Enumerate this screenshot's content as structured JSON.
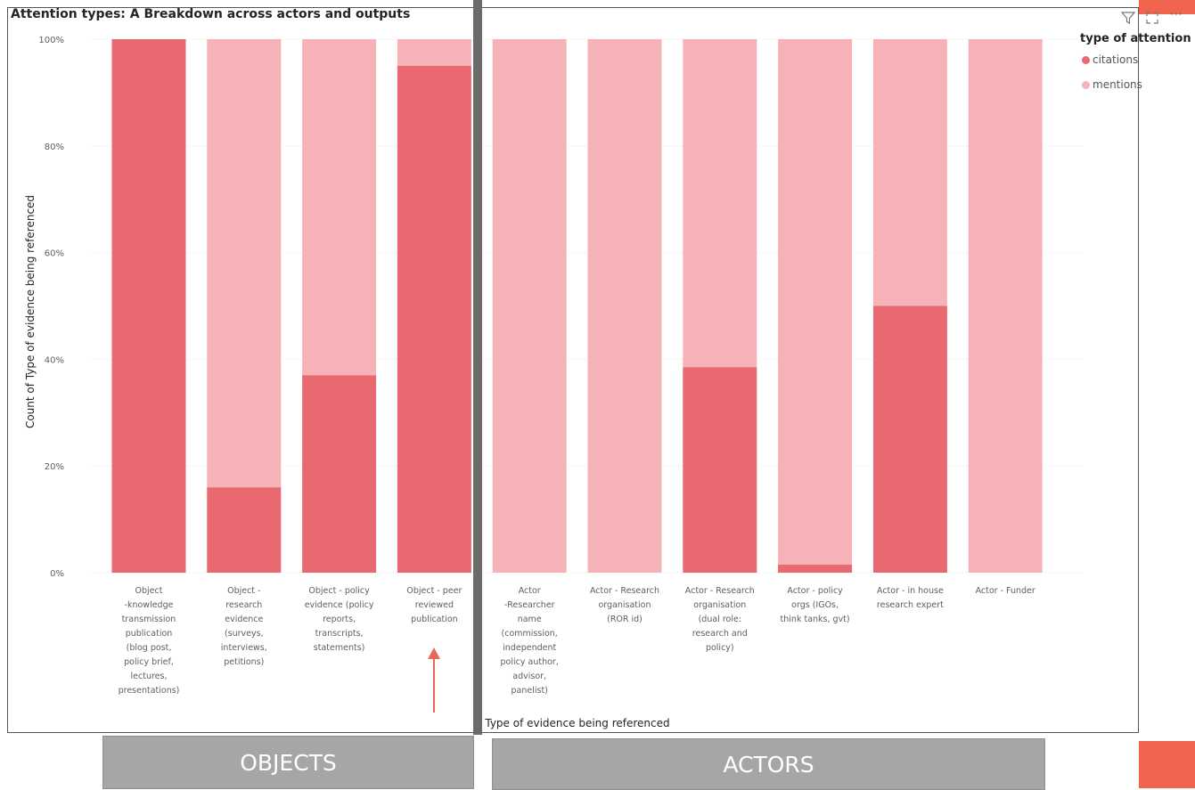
{
  "header": {
    "title": "Attention types: A Breakdown across actors and outputs"
  },
  "toolbar": {
    "filter_icon": "filter-icon",
    "focus_icon": "focus-mode-icon",
    "more_icon": "more-options-icon"
  },
  "legend": {
    "title": "type of attention",
    "items": [
      {
        "label": "citations",
        "color": "#e8696f"
      },
      {
        "label": "mentions",
        "color": "#f5b3b8"
      }
    ]
  },
  "annotations": {
    "objects_label": "OBJECTS",
    "actors_label": "ACTORS"
  },
  "colors": {
    "citations": "#e8696f",
    "mentions": "#f5b3b8",
    "arrow": "#e8695a",
    "accent": "#f0644e"
  },
  "chart_data": {
    "type": "bar",
    "stacked": "100%",
    "xlabel": "Type of evidence being referenced",
    "ylabel": "Count of Type of evidence being referenced",
    "ylim": [
      0,
      100
    ],
    "yticks": [
      "0%",
      "20%",
      "40%",
      "60%",
      "80%",
      "100%"
    ],
    "grid": true,
    "legend_position": "top-right",
    "categories": [
      [
        "Object",
        "-knowledge",
        "transmission",
        "publication",
        "(blog post,",
        "policy brief,",
        "lectures,",
        "presentations)"
      ],
      [
        "Object -",
        "research",
        "evidence",
        "(surveys,",
        "interviews,",
        "petitions)"
      ],
      [
        "Object - policy",
        "evidence (policy",
        "reports,",
        "transcripts,",
        "statements)"
      ],
      [
        "Object - peer",
        "reviewed",
        "publication"
      ],
      [
        "Actor",
        "-Researcher",
        "name",
        "(commission,",
        "independent",
        "policy author,",
        "advisor,",
        "panelist)"
      ],
      [
        "Actor - Research",
        "organisation",
        "(ROR id)"
      ],
      [
        "Actor - Research",
        "organisation",
        "(dual role:",
        "research and",
        "policy)"
      ],
      [
        "Actor - policy",
        "orgs (IGOs,",
        "think tanks, gvt)"
      ],
      [
        "Actor - in house",
        "research expert"
      ],
      [
        "Actor - Funder"
      ]
    ],
    "series": [
      {
        "name": "citations",
        "values": [
          100,
          16,
          37,
          95,
          0,
          0,
          38.5,
          1.5,
          50,
          0
        ]
      },
      {
        "name": "mentions",
        "values": [
          0,
          84,
          63,
          5,
          100,
          100,
          61.5,
          98.5,
          50,
          100
        ]
      }
    ]
  }
}
